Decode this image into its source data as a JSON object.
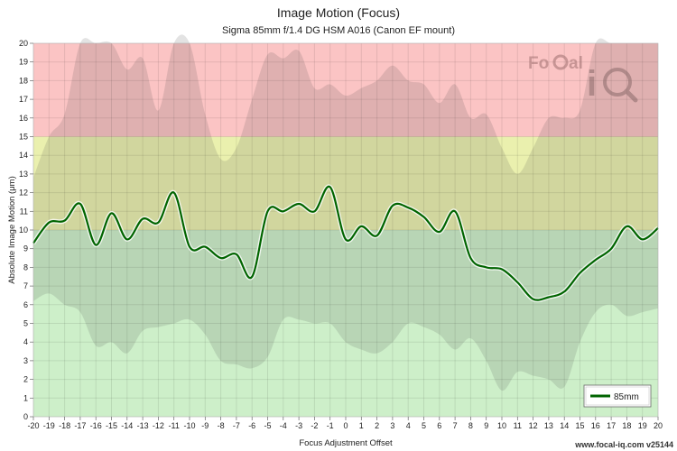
{
  "chart_data": {
    "type": "line",
    "title": "Image Motion (Focus)",
    "subtitle": "Sigma 85mm f/1.4 DG HSM A016 (Canon EF mount)",
    "xlabel": "Focus Adjustment Offset",
    "ylabel": "Absolute Image Motion (μm)",
    "xlim": [
      -20,
      20
    ],
    "ylim": [
      0,
      20
    ],
    "x_ticks": [
      -20,
      -19,
      -18,
      -17,
      -16,
      -15,
      -14,
      -13,
      -12,
      -11,
      -10,
      -9,
      -8,
      -7,
      -6,
      -5,
      -4,
      -3,
      -2,
      -1,
      0,
      1,
      2,
      3,
      4,
      5,
      6,
      7,
      8,
      9,
      10,
      11,
      12,
      13,
      14,
      15,
      16,
      17,
      18,
      19,
      20
    ],
    "y_ticks": [
      0,
      1,
      2,
      3,
      4,
      5,
      6,
      7,
      8,
      9,
      10,
      11,
      12,
      13,
      14,
      15,
      16,
      17,
      18,
      19,
      20
    ],
    "grid": true,
    "legend_position": "bottom-right",
    "zones": [
      {
        "from": 0,
        "to": 10,
        "color": "#cdefc9"
      },
      {
        "from": 10,
        "to": 15,
        "color": "#eaf0ae"
      },
      {
        "from": 15,
        "to": 20,
        "color": "#fbc4c4"
      }
    ],
    "series": [
      {
        "name": "85mm",
        "color": "#006400",
        "x": [
          -20,
          -19,
          -18,
          -17,
          -16,
          -15,
          -14,
          -13,
          -12,
          -11,
          -10,
          -9,
          -8,
          -7,
          -6,
          -5,
          -4,
          -3,
          -2,
          -1,
          0,
          1,
          2,
          3,
          4,
          5,
          6,
          7,
          8,
          9,
          10,
          11,
          12,
          13,
          14,
          15,
          16,
          17,
          18,
          19,
          20
        ],
        "values": [
          9.3,
          10.4,
          10.5,
          11.4,
          9.2,
          10.9,
          9.5,
          10.6,
          10.4,
          12.0,
          9.1,
          9.1,
          8.5,
          8.7,
          7.5,
          11.0,
          11.0,
          11.4,
          11.0,
          12.3,
          9.5,
          10.2,
          9.7,
          11.3,
          11.2,
          10.7,
          9.9,
          11.0,
          8.5,
          8.0,
          7.9,
          7.2,
          6.3,
          6.4,
          6.7,
          7.7,
          8.4,
          9.0,
          10.2,
          9.5,
          10.1
        ]
      }
    ],
    "band_upper": [
      12.8,
      15.0,
      16.2,
      20,
      20,
      20,
      18.6,
      19.2,
      16.4,
      20,
      20,
      16.2,
      13.8,
      14.4,
      17.0,
      19.4,
      19.2,
      19.6,
      17.6,
      17.8,
      17.2,
      17.6,
      18.0,
      18.8,
      18.0,
      17.8,
      16.8,
      17.8,
      16.0,
      16.2,
      14.4,
      13.0,
      14.4,
      16.0,
      16.0,
      16.4,
      20,
      20,
      20,
      20,
      20
    ],
    "band_lower": [
      6.2,
      6.6,
      6.0,
      5.6,
      3.8,
      4.0,
      3.4,
      4.6,
      4.8,
      5.0,
      5.2,
      4.4,
      3.0,
      2.8,
      2.6,
      3.2,
      5.2,
      5.2,
      5.0,
      5.0,
      4.0,
      3.6,
      3.4,
      4.0,
      5.0,
      4.8,
      4.4,
      3.6,
      4.2,
      3.0,
      1.4,
      2.4,
      2.2,
      2.0,
      1.6,
      4.0,
      5.6,
      6.0,
      5.4,
      5.6,
      5.8
    ]
  },
  "logo_text": "FoCal iQ",
  "footer_text": "www.focal-iq.com v25144"
}
